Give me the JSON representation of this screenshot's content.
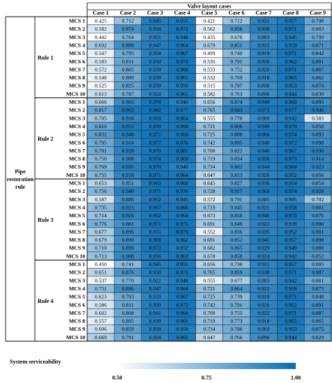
{
  "chart_data": {
    "type": "heatmap",
    "title": "",
    "column_group_label": "Valve layout cases",
    "row_group_label": "Pipe restoration rule",
    "columns": [
      "Case 1",
      "Case 2",
      "Case 3",
      "Case 4",
      "Case 5",
      "Case 6",
      "Case 7",
      "Case 8",
      "Case 9"
    ],
    "row_labels": [
      "MCS 1",
      "MCS 2",
      "MCS 3",
      "MCS 4",
      "MCS 5",
      "MCS 6",
      "MCS 7",
      "MCS 8",
      "MCS 9",
      "MCS 10"
    ],
    "rules": [
      {
        "name": "Rule 1",
        "values": [
          [
            0.425,
            0.712,
            0.945,
            0.955,
            0.421,
            0.712,
            0.921,
            0.957,
            0.798
          ],
          [
            0.582,
            0.874,
            0.95,
            0.972,
            0.562,
            0.858,
            0.938,
            0.971,
            0.803
          ],
          [
            0.442,
            0.764,
            0.921,
            0.948,
            0.435,
            0.678,
            0.883,
            0.945,
            0.799
          ],
          [
            0.692,
            0.888,
            0.947,
            0.964,
            0.679,
            0.851,
            0.922,
            0.959,
            0.871
          ],
          [
            0.547,
            0.795,
            0.934,
            0.967,
            0.499,
            0.74,
            0.919,
            0.971,
            0.842
          ],
          [
            0.583,
            0.811,
            0.95,
            0.972,
            0.535,
            0.791,
            0.926,
            0.962,
            0.891
          ],
          [
            0.572,
            0.805,
            0.939,
            0.968,
            0.533,
            0.752,
            0.92,
            0.971,
            0.887
          ],
          [
            0.548,
            0.8,
            0.939,
            0.961,
            0.532,
            0.769,
            0.918,
            0.965,
            0.862
          ],
          [
            0.525,
            0.825,
            0.939,
            0.95,
            0.515,
            0.787,
            0.898,
            0.953,
            0.874
          ],
          [
            0.613,
            0.787,
            0.924,
            0.961,
            0.582,
            0.763,
            0.896,
            0.944,
            0.83
          ]
        ]
      },
      {
        "name": "Rule 2",
        "values": [
          [
            0.666,
            0.903,
            0.974,
            0.94,
            0.656,
            0.874,
            0.949,
            0.96,
            0.895
          ],
          [
            0.817,
            0.963,
            0.982,
            0.977,
            0.765,
            0.943,
            0.972,
            0.977,
            0.946
          ],
          [
            0.705,
            0.916,
            0.959,
            0.964,
            0.555,
            0.778,
            0.9,
            0.942,
            0.583
          ],
          [
            0.81,
            0.953,
            0.97,
            0.968,
            0.721,
            0.906,
            0.949,
            0.97,
            0.858
          ],
          [
            0.832,
            0.948,
            0.971,
            0.969,
            0.725,
            0.888,
            0.96,
            0.974,
            0.893
          ],
          [
            0.795,
            0.914,
            0.977,
            0.976,
            0.742,
            0.895,
            0.94,
            0.972,
            0.898
          ],
          [
            0.791,
            0.928,
            0.97,
            0.981,
            0.7,
            0.822,
            0.94,
            0.967,
            0.93
          ],
          [
            0.75,
            0.908,
            0.974,
            0.969,
            0.719,
            0.834,
            0.956,
            0.973,
            0.914
          ],
          [
            0.769,
            0.935,
            0.97,
            0.94,
            0.734,
            0.882,
            0.944,
            0.968,
            0.923
          ],
          [
            0.755,
            0.918,
            0.971,
            0.964,
            0.647,
            0.853,
            0.926,
            0.952,
            0.856
          ]
        ]
      },
      {
        "name": "Rule 3",
        "values": [
          [
            0.653,
            0.851,
            0.963,
            0.96,
            0.645,
            0.827,
            0.936,
            0.954,
            0.854
          ],
          [
            0.756,
            0.94,
            0.971,
            0.976,
            0.728,
            0.917,
            0.96,
            0.974,
            0.928
          ],
          [
            0.587,
            0.886,
            0.952,
            0.945,
            0.572,
            0.791,
            0.885,
            0.905,
            0.702
          ],
          [
            0.735,
            0.921,
            0.967,
            0.966,
            0.719,
            0.845,
            0.921,
            0.958,
            0.881
          ],
          [
            0.714,
            0.926,
            0.962,
            0.964,
            0.673,
            0.858,
            0.946,
            0.973,
            0.876
          ],
          [
            0.776,
            0.881,
            0.971,
            0.975,
            0.691,
            0.84,
            0.923,
            0.939,
            0.9
          ],
          [
            0.677,
            0.896,
            0.955,
            0.979,
            0.552,
            0.836,
            0.926,
            0.952,
            0.901
          ],
          [
            0.679,
            0.89,
            0.969,
            0.962,
            0.691,
            0.852,
            0.945,
            0.957,
            0.898
          ],
          [
            0.71,
            0.899,
            0.972,
            0.952,
            0.682,
            0.865,
            0.929,
            0.949,
            0.88
          ],
          [
            0.713,
            0.908,
            0.956,
            0.963,
            0.678,
            0.858,
            0.924,
            0.942,
            0.852
          ]
        ]
      },
      {
        "name": "Rule 4",
        "values": [
          [
            0.45,
            0.741,
            0.945,
            0.955,
            0.656,
            0.73,
            0.921,
            0.957,
            0.805
          ],
          [
            0.651,
            0.876,
            0.95,
            0.972,
            0.765,
            0.859,
            0.938,
            0.971,
            0.907
          ],
          [
            0.537,
            0.77,
            0.922,
            0.948,
            0.555,
            0.677,
            0.883,
            0.942,
            0.801
          ],
          [
            0.731,
            0.896,
            0.947,
            0.964,
            0.721,
            0.864,
            0.922,
            0.959,
            0.875
          ],
          [
            0.623,
            0.793,
            0.933,
            0.967,
            0.725,
            0.739,
            0.918,
            0.971,
            0.848
          ],
          [
            0.586,
            0.811,
            0.95,
            0.972,
            0.742,
            0.791,
            0.926,
            0.962,
            0.891
          ],
          [
            0.602,
            0.808,
            0.941,
            0.968,
            0.7,
            0.755,
            0.922,
            0.971,
            0.887
          ],
          [
            0.557,
            0.805,
            0.939,
            0.961,
            0.719,
            0.773,
            0.918,
            0.965,
            0.865
          ],
          [
            0.606,
            0.829,
            0.939,
            0.95,
            0.734,
            0.788,
            0.903,
            0.953,
            0.875
          ],
          [
            0.669,
            0.791,
            0.924,
            0.961,
            0.647,
            0.766,
            0.896,
            0.944,
            0.829
          ]
        ]
      }
    ],
    "colorbar": {
      "label": "System serviceability",
      "min": 0.5,
      "max": 1.0,
      "ticks": [
        "0.50",
        "0.75",
        "1.00"
      ],
      "color_low": "#ffffff",
      "color_high": "#0a6db4"
    }
  }
}
